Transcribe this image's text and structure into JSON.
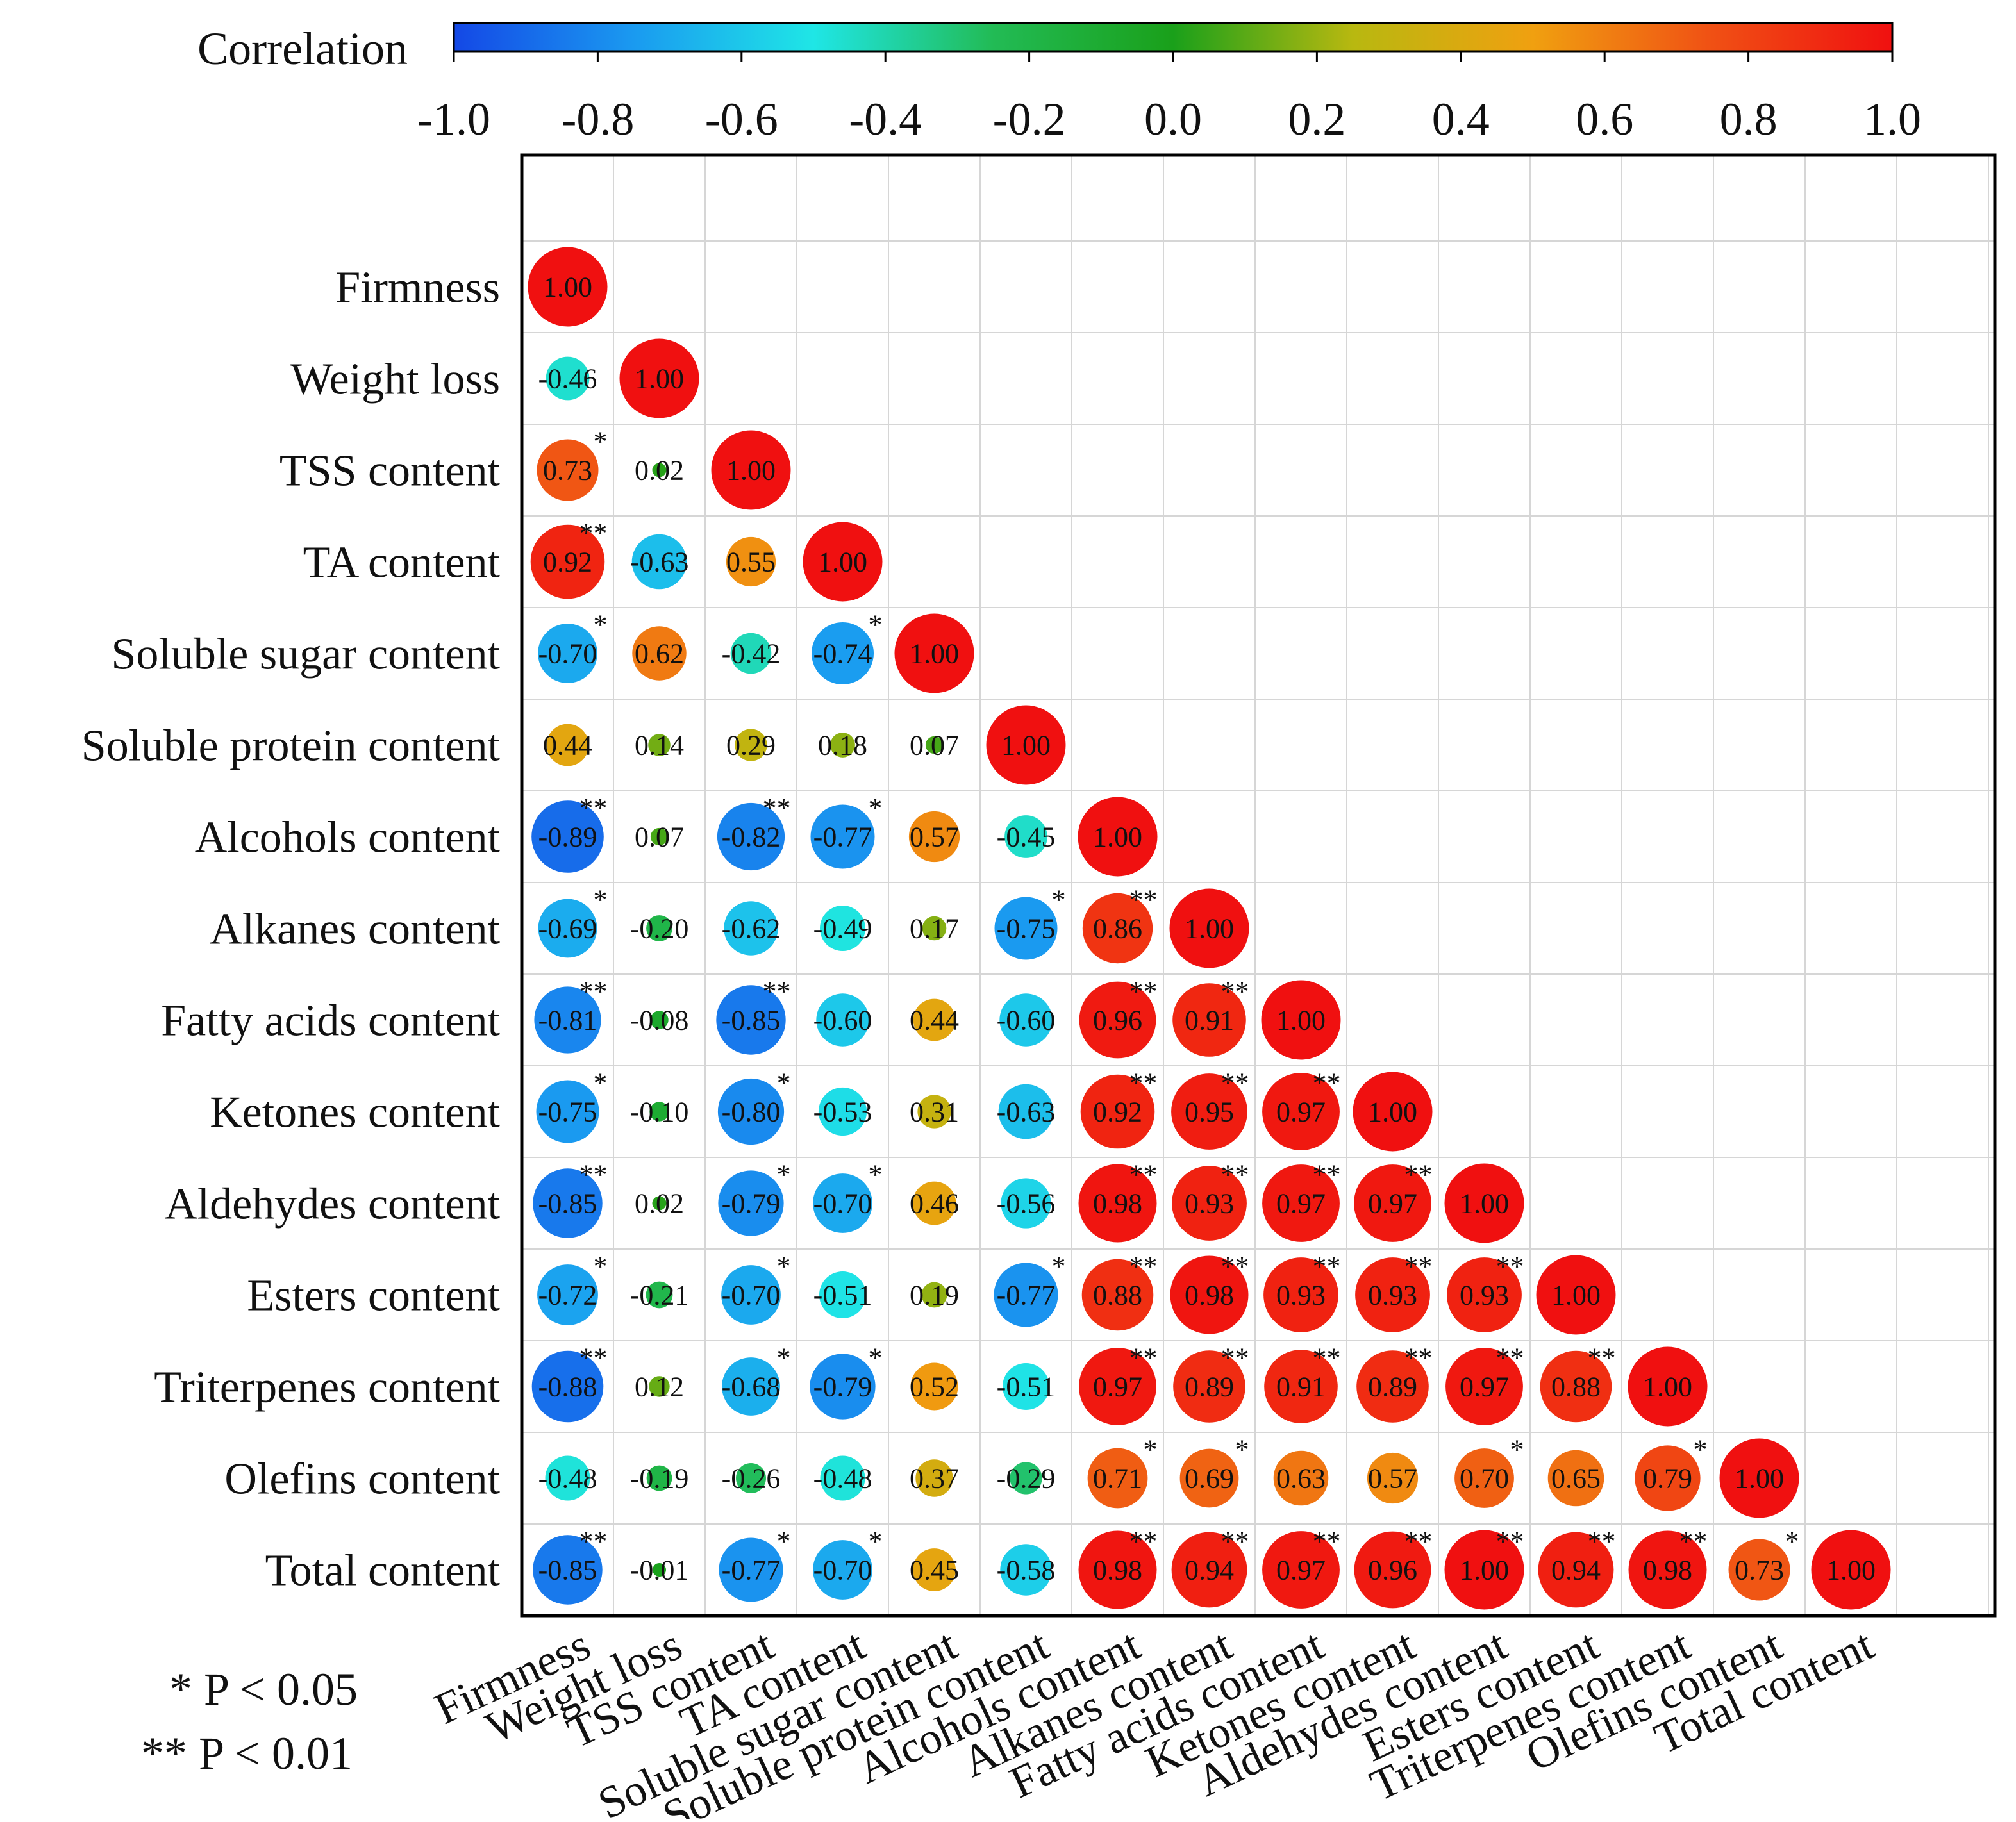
{
  "chart_data": {
    "type": "heatmap",
    "variables": [
      "Firmness",
      "Weight loss",
      "TSS content",
      "TA content",
      "Soluble sugar content",
      "Soluble protein content",
      "Alcohols content",
      "Alkanes content",
      "Fatty acids content",
      "Ketones content",
      "Aldehydes content",
      "Esters content",
      "Triterpenes content",
      "Olefins content",
      "Total content"
    ],
    "matrix": [
      [
        "1.00"
      ],
      [
        "-0.46",
        "1.00"
      ],
      [
        "0.73",
        "0.02",
        "1.00"
      ],
      [
        "0.92",
        "-0.63",
        "0.55",
        "1.00"
      ],
      [
        "-0.70",
        "0.62",
        "-0.42",
        "-0.74",
        "1.00"
      ],
      [
        "0.44",
        "0.14",
        "0.29",
        "0.18",
        "0.07",
        "1.00"
      ],
      [
        "-0.89",
        "0.07",
        "-0.82",
        "-0.77",
        "0.57",
        "-0.45",
        "1.00"
      ],
      [
        "-0.69",
        "-0.20",
        "-0.62",
        "-0.49",
        "0.17",
        "-0.75",
        "0.86",
        "1.00"
      ],
      [
        "-0.81",
        "-0.08",
        "-0.85",
        "-0.60",
        "0.44",
        "-0.60",
        "0.96",
        "0.91",
        "1.00"
      ],
      [
        "-0.75",
        "-0.10",
        "-0.80",
        "-0.53",
        "0.31",
        "-0.63",
        "0.92",
        "0.95",
        "0.97",
        "1.00"
      ],
      [
        "-0.85",
        "0.02",
        "-0.79",
        "-0.70",
        "0.46",
        "-0.56",
        "0.98",
        "0.93",
        "0.97",
        "0.97",
        "1.00"
      ],
      [
        "-0.72",
        "-0.21",
        "-0.70",
        "-0.51",
        "0.19",
        "-0.77",
        "0.88",
        "0.98",
        "0.93",
        "0.93",
        "0.93",
        "1.00"
      ],
      [
        "-0.88",
        "0.12",
        "-0.68",
        "-0.79",
        "0.52",
        "-0.51",
        "0.97",
        "0.89",
        "0.91",
        "0.89",
        "0.97",
        "0.88",
        "1.00"
      ],
      [
        "-0.48",
        "-0.19",
        "-0.26",
        "-0.48",
        "0.37",
        "-0.29",
        "0.71",
        "0.69",
        "0.63",
        "0.57",
        "0.70",
        "0.65",
        "0.79",
        "1.00"
      ],
      [
        "-0.85",
        "-0.01",
        "-0.77",
        "-0.70",
        "0.45",
        "-0.58",
        "0.98",
        "0.94",
        "0.97",
        "0.96",
        "1.00",
        "0.94",
        "0.98",
        "0.73",
        "1.00"
      ]
    ],
    "significance": [
      [
        ""
      ],
      [
        "",
        ""
      ],
      [
        "*",
        "",
        ""
      ],
      [
        "**",
        "",
        "",
        ""
      ],
      [
        "*",
        "",
        "",
        "*",
        ""
      ],
      [
        "",
        "",
        "",
        "",
        "",
        ""
      ],
      [
        "**",
        "",
        "**",
        "*",
        "",
        "",
        ""
      ],
      [
        "*",
        "",
        "",
        "",
        "",
        "*",
        "**",
        ""
      ],
      [
        "**",
        "",
        "**",
        "",
        "",
        "",
        "**",
        "**",
        ""
      ],
      [
        "*",
        "",
        "*",
        "",
        "",
        "",
        "**",
        "**",
        "**",
        ""
      ],
      [
        "**",
        "",
        "*",
        "*",
        "",
        "",
        "**",
        "**",
        "**",
        "**",
        ""
      ],
      [
        "*",
        "",
        "*",
        "",
        "",
        "*",
        "**",
        "**",
        "**",
        "**",
        "**",
        ""
      ],
      [
        "**",
        "",
        "*",
        "*",
        "",
        "",
        "**",
        "**",
        "**",
        "**",
        "**",
        "**",
        ""
      ],
      [
        "",
        "",
        "",
        "",
        "",
        "",
        "*",
        "*",
        "",
        "",
        "*",
        "",
        "*",
        ""
      ],
      [
        "**",
        "",
        "*",
        "*",
        "",
        "",
        "**",
        "**",
        "**",
        "**",
        "**",
        "**",
        "**",
        "*",
        ""
      ]
    ],
    "value_range": [
      -1.0,
      1.0
    ],
    "colorbar": {
      "title": "Correlation",
      "ticks": [
        "-1.0",
        "-0.8",
        "-0.6",
        "-0.4",
        "-0.2",
        "0.0",
        "0.2",
        "0.4",
        "0.6",
        "0.8",
        "1.0"
      ],
      "colors": [
        "#1448e6",
        "#1a9af0",
        "#1fe6e6",
        "#22bb55",
        "#1aa01a",
        "#b8b810",
        "#f0a010",
        "#f05014",
        "#f01010"
      ]
    },
    "grid": true,
    "legend": {
      "p05": "* P < 0.05",
      "p01": "** P < 0.01"
    }
  }
}
